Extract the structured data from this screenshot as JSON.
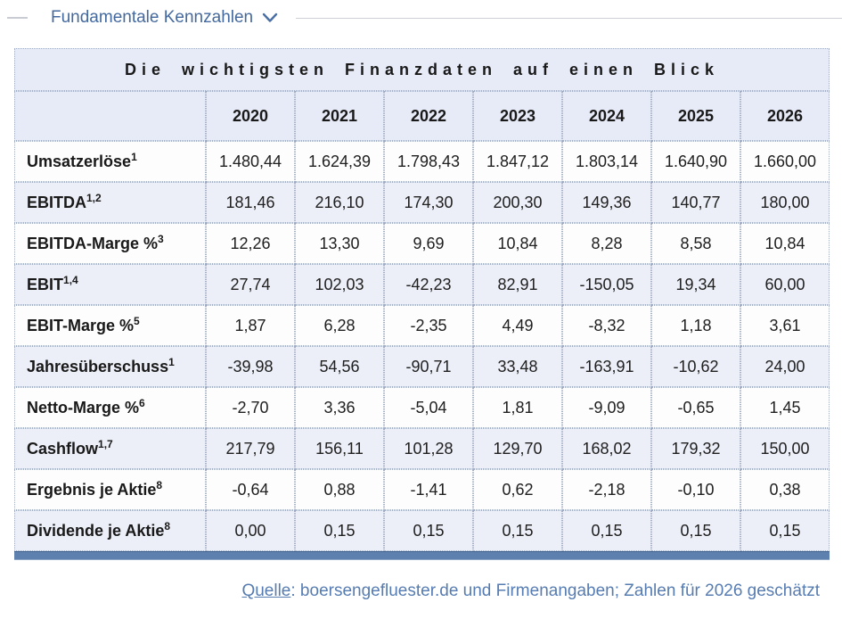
{
  "section_header": {
    "title": "Fundamentale Kennzahlen",
    "chevron_icon": "chevron-down"
  },
  "chart_data": {
    "type": "table",
    "title": "Die wichtigsten Finanzdaten auf einen Blick",
    "year_columns": [
      "2020",
      "2021",
      "2022",
      "2023",
      "2024",
      "2025",
      "2026"
    ],
    "rows": [
      {
        "label": "Umsatzerlöse",
        "footnote": "1",
        "values": [
          "1.480,44",
          "1.624,39",
          "1.798,43",
          "1.847,12",
          "1.803,14",
          "1.640,90",
          "1.660,00"
        ]
      },
      {
        "label": "EBITDA",
        "footnote": "1,2",
        "values": [
          "181,46",
          "216,10",
          "174,30",
          "200,30",
          "149,36",
          "140,77",
          "180,00"
        ]
      },
      {
        "label": "EBITDA-Marge %",
        "footnote": "3",
        "values": [
          "12,26",
          "13,30",
          "9,69",
          "10,84",
          "8,28",
          "8,58",
          "10,84"
        ]
      },
      {
        "label": "EBIT",
        "footnote": "1,4",
        "values": [
          "27,74",
          "102,03",
          "-42,23",
          "82,91",
          "-150,05",
          "19,34",
          "60,00"
        ]
      },
      {
        "label": "EBIT-Marge %",
        "footnote": "5",
        "values": [
          "1,87",
          "6,28",
          "-2,35",
          "4,49",
          "-8,32",
          "1,18",
          "3,61"
        ]
      },
      {
        "label": "Jahresüberschuss",
        "footnote": "1",
        "values": [
          "-39,98",
          "54,56",
          "-90,71",
          "33,48",
          "-163,91",
          "-10,62",
          "24,00"
        ]
      },
      {
        "label": "Netto-Marge %",
        "footnote": "6",
        "values": [
          "-2,70",
          "3,36",
          "-5,04",
          "1,81",
          "-9,09",
          "-0,65",
          "1,45"
        ]
      },
      {
        "label": "Cashflow",
        "footnote": "1,7",
        "values": [
          "217,79",
          "156,11",
          "101,28",
          "129,70",
          "168,02",
          "179,32",
          "150,00"
        ]
      },
      {
        "label": "Ergebnis je Aktie",
        "footnote": "8",
        "values": [
          "-0,64",
          "0,88",
          "-1,41",
          "0,62",
          "-2,18",
          "-0,10",
          "0,38"
        ]
      },
      {
        "label": "Dividende je Aktie",
        "footnote": "8",
        "values": [
          "0,00",
          "0,15",
          "0,15",
          "0,15",
          "0,15",
          "0,15",
          "0,15"
        ]
      }
    ]
  },
  "footer": {
    "source_label": "Quelle",
    "source_rest": ": boersengefluester.de und Firmenangaben; Zahlen für 2026 geschätzt"
  },
  "colors": {
    "accent_bar": "#5d80ae",
    "header_background": "#e7ebf7",
    "stripe_background": "#eceff8",
    "link_blue": "#567cb2",
    "section_title_blue": "#44699e"
  }
}
